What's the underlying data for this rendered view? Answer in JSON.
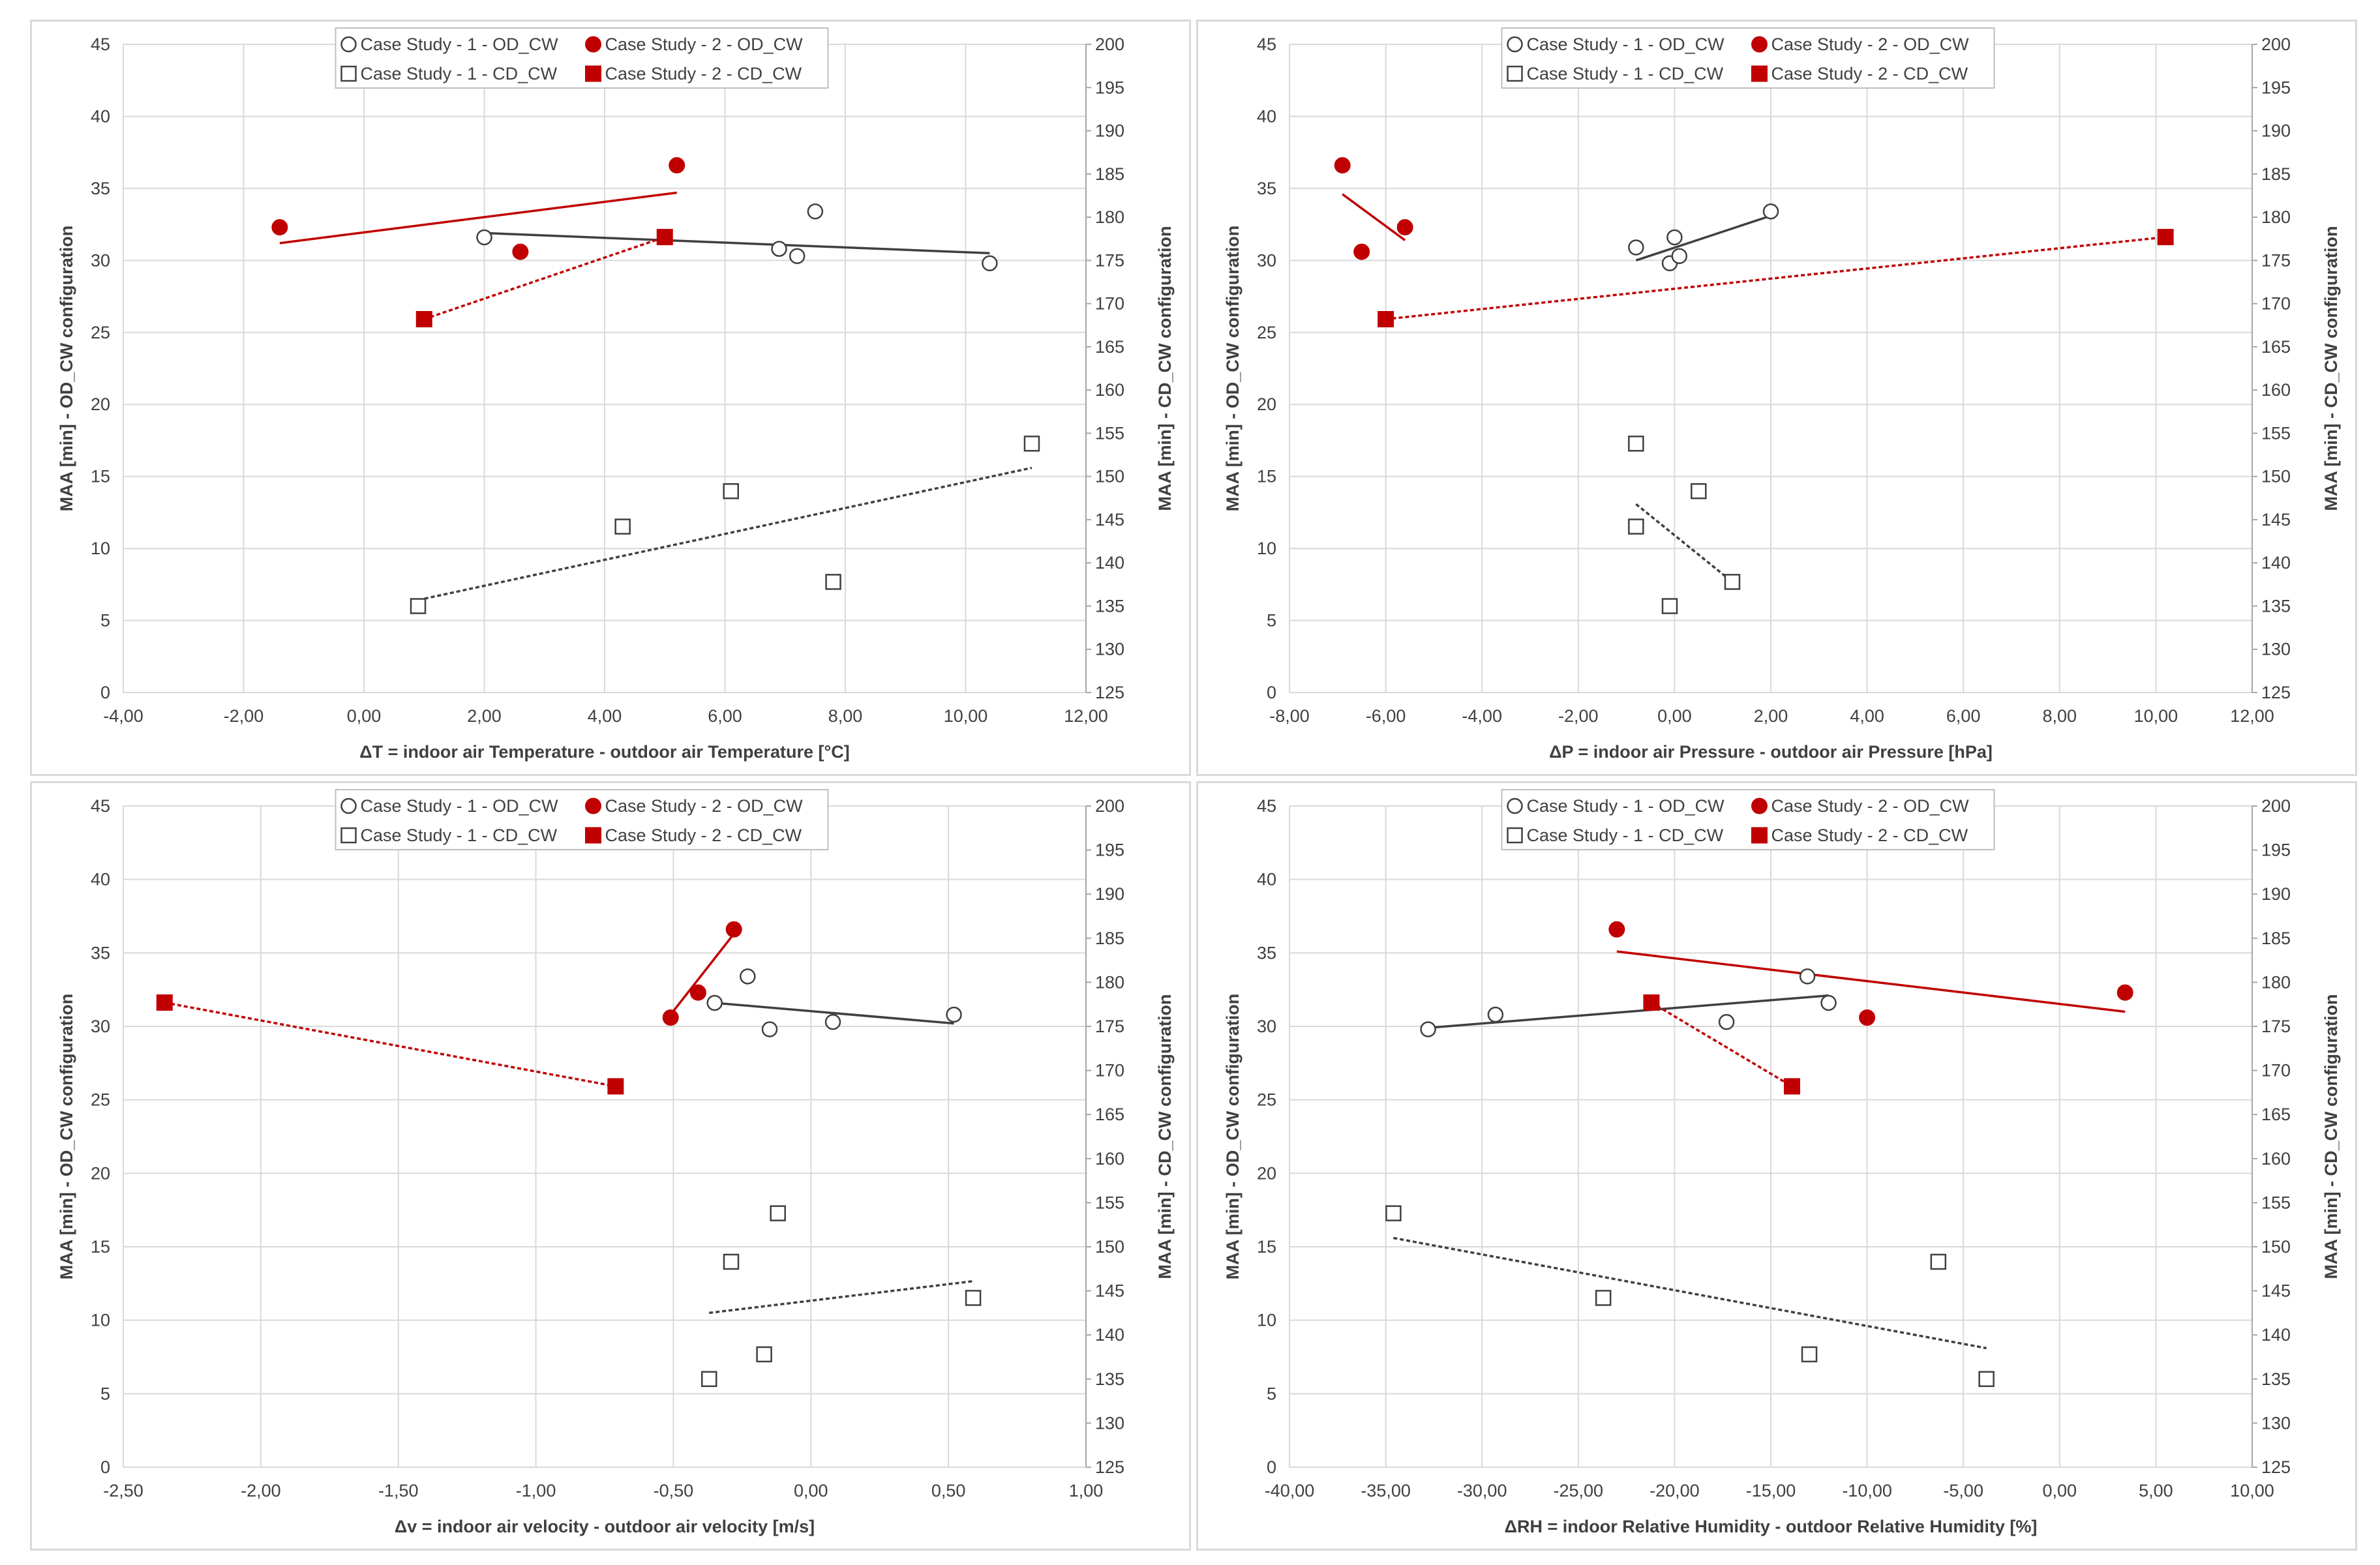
{
  "legend_labels": {
    "cs1_od": "Case Study - 1 - OD_CW",
    "cs2_od": "Case Study - 2 - OD_CW",
    "cs1_cd": "Case Study - 1 - CD_CW",
    "cs2_cd": "Case Study - 2 - CD_CW"
  },
  "colors": {
    "black": "#404040",
    "red": "#c00000",
    "grid": "#d9d9d9",
    "gray": "#595959"
  },
  "chart_data": [
    {
      "type": "scatter",
      "xlabel": "ΔT = indoor air Temperature - outdoor air Temperature [°C]",
      "ylabel": "MAA [min] - OD_CW configuration",
      "y2label": "MAA [min] - CD_CW configuration",
      "xlim": [
        -4,
        12
      ],
      "xstep": 2,
      "xticks": [
        "-4,00",
        "-2,00",
        "0,00",
        "2,00",
        "4,00",
        "6,00",
        "8,00",
        "10,00",
        "12,00"
      ],
      "ylim": [
        0,
        45
      ],
      "ystep": 5,
      "yticks": [
        "0",
        "5",
        "10",
        "15",
        "20",
        "25",
        "30",
        "35",
        "40",
        "45"
      ],
      "y2lim": [
        125,
        200
      ],
      "y2step": 5,
      "y2ticks": [
        "125",
        "130",
        "135",
        "140",
        "145",
        "150",
        "155",
        "160",
        "165",
        "170",
        "175",
        "180",
        "185",
        "190",
        "195",
        "200"
      ],
      "grid": true,
      "legend": "top-center",
      "series": [
        {
          "name": "Case Study - 1 - OD_CW",
          "marker": "open-circle",
          "axis": "left",
          "color": "black",
          "points": [
            [
              2.0,
              31.6
            ],
            [
              6.9,
              30.8
            ],
            [
              7.2,
              30.3
            ],
            [
              7.5,
              33.4
            ],
            [
              10.4,
              29.8
            ]
          ],
          "trend": [
            [
              2.0,
              31.9
            ],
            [
              10.4,
              30.5
            ]
          ],
          "trend_style": "solid"
        },
        {
          "name": "Case Study - 2 - OD_CW",
          "marker": "filled-circle",
          "axis": "left",
          "color": "red",
          "points": [
            [
              -1.4,
              32.3
            ],
            [
              2.6,
              30.6
            ],
            [
              5.2,
              36.6
            ]
          ],
          "trend": [
            [
              -1.4,
              31.2
            ],
            [
              5.2,
              34.7
            ]
          ],
          "trend_style": "solid"
        },
        {
          "name": "Case Study - 1 - CD_CW",
          "marker": "open-square",
          "axis": "right",
          "color": "black",
          "points": [
            [
              0.9,
              135
            ],
            [
              4.3,
              144.2
            ],
            [
              6.1,
              148.3
            ],
            [
              7.8,
              137.8
            ],
            [
              11.1,
              153.8
            ]
          ],
          "trend": [
            [
              0.9,
              135.7
            ],
            [
              11.1,
              151
            ]
          ],
          "trend_style": "dotted"
        },
        {
          "name": "Case Study - 2 - CD_CW",
          "marker": "filled-square",
          "axis": "right",
          "color": "red",
          "points": [
            [
              1.0,
              168.2
            ],
            [
              5.0,
              177.7
            ]
          ],
          "trend": [
            [
              1.0,
              168.2
            ],
            [
              5.0,
              177.7
            ]
          ],
          "trend_style": "dotted"
        }
      ]
    },
    {
      "type": "scatter",
      "xlabel": "ΔP = indoor air Pressure - outdoor air Pressure [hPa]",
      "ylabel": "MAA [min] - OD_CW configuration",
      "y2label": "MAA [min] - CD_CW configuration",
      "xlim": [
        -8,
        12
      ],
      "xstep": 2,
      "xticks": [
        "-8,00",
        "-6,00",
        "-4,00",
        "-2,00",
        "0,00",
        "2,00",
        "4,00",
        "6,00",
        "8,00",
        "10,00",
        "12,00"
      ],
      "ylim": [
        0,
        45
      ],
      "ystep": 5,
      "yticks": [
        "0",
        "5",
        "10",
        "15",
        "20",
        "25",
        "30",
        "35",
        "40",
        "45"
      ],
      "y2lim": [
        125,
        200
      ],
      "y2step": 5,
      "y2ticks": [
        "125",
        "130",
        "135",
        "140",
        "145",
        "150",
        "155",
        "160",
        "165",
        "170",
        "175",
        "180",
        "185",
        "190",
        "195",
        "200"
      ],
      "grid": true,
      "legend": "top-center",
      "series": [
        {
          "name": "Case Study - 1 - OD_CW",
          "marker": "open-circle",
          "axis": "left",
          "color": "black",
          "points": [
            [
              -0.8,
              30.9
            ],
            [
              -0.1,
              29.8
            ],
            [
              0.0,
              31.6
            ],
            [
              0.1,
              30.3
            ],
            [
              2.0,
              33.4
            ]
          ],
          "trend": [
            [
              -0.8,
              30.0
            ],
            [
              2.0,
              33.1
            ]
          ],
          "trend_style": "solid"
        },
        {
          "name": "Case Study - 2 - OD_CW",
          "marker": "filled-circle",
          "axis": "left",
          "color": "red",
          "points": [
            [
              -6.9,
              36.6
            ],
            [
              -6.5,
              30.6
            ],
            [
              -5.6,
              32.3
            ]
          ],
          "trend": [
            [
              -6.9,
              34.6
            ],
            [
              -5.6,
              31.4
            ]
          ],
          "trend_style": "solid"
        },
        {
          "name": "Case Study - 1 - CD_CW",
          "marker": "open-square",
          "axis": "right",
          "color": "black",
          "points": [
            [
              -0.8,
              153.8
            ],
            [
              -0.8,
              144.2
            ],
            [
              0.5,
              148.3
            ],
            [
              1.2,
              137.8
            ],
            [
              -0.1,
              135
            ]
          ],
          "trend": [
            [
              -0.8,
              146.8
            ],
            [
              1.2,
              137.8
            ]
          ],
          "trend_style": "dotted"
        },
        {
          "name": "Case Study - 2 - CD_CW",
          "marker": "filled-square",
          "axis": "right",
          "color": "red",
          "points": [
            [
              -6.0,
              168.2
            ],
            [
              10.2,
              177.7
            ]
          ],
          "trend": [
            [
              -6.0,
              168.2
            ],
            [
              10.2,
              177.7
            ]
          ],
          "trend_style": "dotted"
        }
      ]
    },
    {
      "type": "scatter",
      "xlabel": "Δv = indoor air velocity - outdoor air velocity [m/s]",
      "ylabel": "MAA [min] - OD_CW configuration",
      "y2label": "MAA [min] - CD_CW configuration",
      "xlim": [
        -2.5,
        1.0
      ],
      "xstep": 0.5,
      "xticks": [
        "-2,50",
        "-2,00",
        "-1,50",
        "-1,00",
        "-0,50",
        "0,00",
        "0,50",
        "1,00"
      ],
      "ylim": [
        0,
        45
      ],
      "ystep": 5,
      "yticks": [
        "0",
        "5",
        "10",
        "15",
        "20",
        "25",
        "30",
        "35",
        "40",
        "45"
      ],
      "y2lim": [
        125,
        200
      ],
      "y2step": 5,
      "y2ticks": [
        "125",
        "130",
        "135",
        "140",
        "145",
        "150",
        "155",
        "160",
        "165",
        "170",
        "175",
        "180",
        "185",
        "190",
        "195",
        "200"
      ],
      "grid": true,
      "legend": "top-center",
      "series": [
        {
          "name": "Case Study - 1 - OD_CW",
          "marker": "open-circle",
          "axis": "left",
          "color": "black",
          "points": [
            [
              -0.35,
              31.6
            ],
            [
              -0.23,
              33.4
            ],
            [
              -0.15,
              29.8
            ],
            [
              0.08,
              30.3
            ],
            [
              0.52,
              30.8
            ]
          ],
          "trend": [
            [
              -0.35,
              31.6
            ],
            [
              0.52,
              30.2
            ]
          ],
          "trend_style": "solid"
        },
        {
          "name": "Case Study - 2 - OD_CW",
          "marker": "filled-circle",
          "axis": "left",
          "color": "red",
          "points": [
            [
              -0.51,
              30.6
            ],
            [
              -0.41,
              32.3
            ],
            [
              -0.28,
              36.6
            ]
          ],
          "trend": [
            [
              -0.51,
              30.8
            ],
            [
              -0.28,
              36.3
            ]
          ],
          "trend_style": "solid"
        },
        {
          "name": "Case Study - 1 - CD_CW",
          "marker": "open-square",
          "axis": "right",
          "color": "black",
          "points": [
            [
              -0.37,
              135
            ],
            [
              -0.29,
              148.3
            ],
            [
              -0.17,
              137.8
            ],
            [
              -0.12,
              153.8
            ],
            [
              0.59,
              144.2
            ]
          ],
          "trend": [
            [
              -0.37,
              142.5
            ],
            [
              0.59,
              146.1
            ]
          ],
          "trend_style": "dotted"
        },
        {
          "name": "Case Study - 2 - CD_CW",
          "marker": "filled-square",
          "axis": "right",
          "color": "red",
          "points": [
            [
              -2.35,
              177.7
            ],
            [
              -0.71,
              168.2
            ]
          ],
          "trend": [
            [
              -2.35,
              177.7
            ],
            [
              -0.71,
              168.2
            ]
          ],
          "trend_style": "dotted"
        }
      ]
    },
    {
      "type": "scatter",
      "xlabel": "ΔRH = indoor Relative Humidity - outdoor Relative Humidity [%]",
      "ylabel": "MAA [min] - OD_CW configuration",
      "y2label": "MAA [min] - CD_CW configuration",
      "xlim": [
        -40,
        10
      ],
      "xstep": 5,
      "xticks": [
        "-40,00",
        "-35,00",
        "-30,00",
        "-25,00",
        "-20,00",
        "-15,00",
        "-10,00",
        "-5,00",
        "0,00",
        "5,00",
        "10,00"
      ],
      "ylim": [
        0,
        45
      ],
      "ystep": 5,
      "yticks": [
        "0",
        "5",
        "10",
        "15",
        "20",
        "25",
        "30",
        "35",
        "40",
        "45"
      ],
      "y2lim": [
        125,
        200
      ],
      "y2step": 5,
      "y2ticks": [
        "125",
        "130",
        "135",
        "140",
        "145",
        "150",
        "155",
        "160",
        "165",
        "170",
        "175",
        "180",
        "185",
        "190",
        "195",
        "200"
      ],
      "grid": true,
      "legend": "top-center",
      "series": [
        {
          "name": "Case Study - 1 - OD_CW",
          "marker": "open-circle",
          "axis": "left",
          "color": "black",
          "points": [
            [
              -32.8,
              29.8
            ],
            [
              -29.3,
              30.8
            ],
            [
              -17.3,
              30.3
            ],
            [
              -13.1,
              33.4
            ],
            [
              -12.0,
              31.6
            ]
          ],
          "trend": [
            [
              -32.8,
              29.9
            ],
            [
              -12.0,
              32.1
            ]
          ],
          "trend_style": "solid"
        },
        {
          "name": "Case Study - 2 - OD_CW",
          "marker": "filled-circle",
          "axis": "left",
          "color": "red",
          "points": [
            [
              -23.0,
              36.6
            ],
            [
              -10.0,
              30.6
            ],
            [
              3.4,
              32.3
            ]
          ],
          "trend": [
            [
              -23.0,
              35.1
            ],
            [
              3.4,
              31.0
            ]
          ],
          "trend_style": "solid"
        },
        {
          "name": "Case Study - 1 - CD_CW",
          "marker": "open-square",
          "axis": "right",
          "color": "black",
          "points": [
            [
              -34.6,
              153.8
            ],
            [
              -23.7,
              144.2
            ],
            [
              -13.0,
              137.8
            ],
            [
              -6.3,
              148.3
            ],
            [
              -3.8,
              135
            ]
          ],
          "trend": [
            [
              -34.6,
              151
            ],
            [
              -3.8,
              138.5
            ]
          ],
          "trend_style": "dotted"
        },
        {
          "name": "Case Study - 2 - CD_CW",
          "marker": "filled-square",
          "axis": "right",
          "color": "red",
          "points": [
            [
              -21.2,
              177.7
            ],
            [
              -13.9,
              168.2
            ]
          ],
          "trend": [
            [
              -21.2,
              177.7
            ],
            [
              -13.9,
              168.2
            ]
          ],
          "trend_style": "dotted"
        }
      ]
    }
  ]
}
